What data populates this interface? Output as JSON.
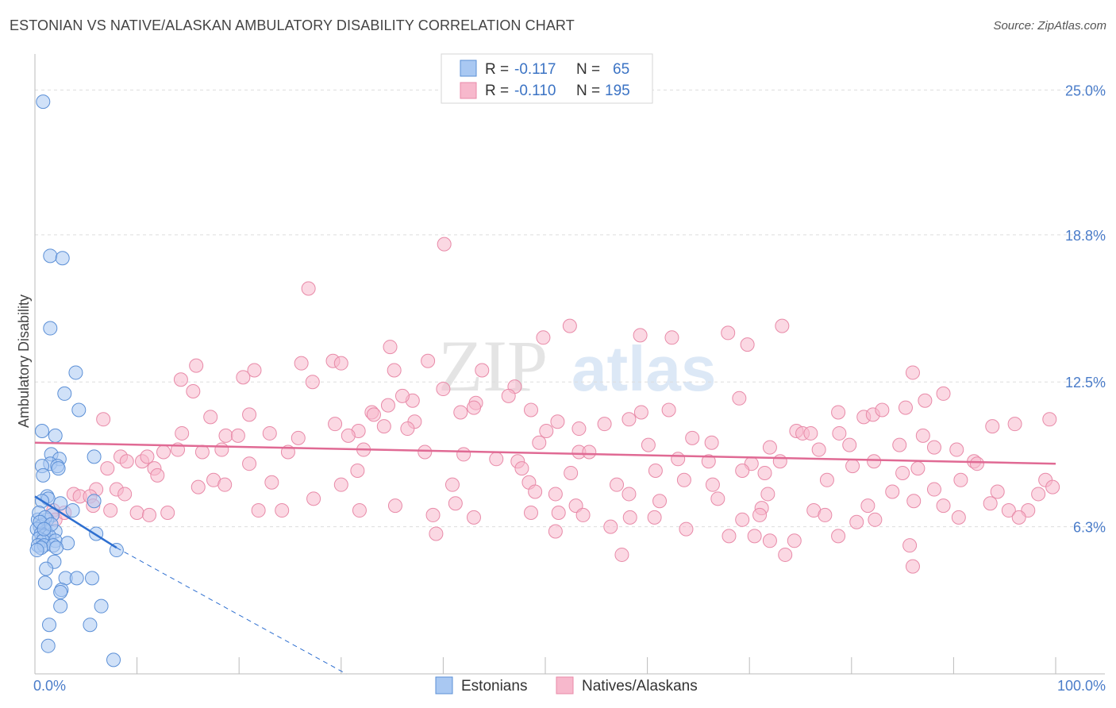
{
  "title": "ESTONIAN VS NATIVE/ALASKAN AMBULATORY DISABILITY CORRELATION CHART",
  "source": "Source: ZipAtlas.com",
  "watermark": {
    "zip": "ZIP",
    "atlas": "atlas"
  },
  "legend_top": {
    "rows": [
      {
        "r_label": "R =",
        "r_value": "-0.117",
        "n_label": "N =",
        "n_value": "65"
      },
      {
        "r_label": "R =",
        "r_value": "-0.110",
        "n_label": "N =",
        "n_value": "195"
      }
    ]
  },
  "colors": {
    "estonian_fill": "#a9c8f2",
    "estonian_stroke": "#5b8fd6",
    "estonian_line": "#2e6fd0",
    "native_fill": "#f7b8cc",
    "native_stroke": "#e88aa8",
    "native_line": "#e06a94",
    "axis_text": "#4a7cc9",
    "grid": "#dddddd"
  },
  "chart_data": {
    "type": "scatter",
    "title": "ESTONIAN VS NATIVE/ALASKAN AMBULATORY DISABILITY CORRELATION CHART",
    "xlabel": "",
    "ylabel": "Ambulatory Disability",
    "xlim": [
      0,
      100
    ],
    "ylim": [
      0,
      26
    ],
    "x_tick_labels": [
      "0.0%",
      "100.0%"
    ],
    "y_ticks": [
      6.3,
      12.5,
      18.8,
      25.0
    ],
    "y_tick_labels": [
      "6.3%",
      "12.5%",
      "18.8%",
      "25.0%"
    ],
    "grid": "horizontal dashed",
    "legend_position": "top-center",
    "series": [
      {
        "name": "Estonians",
        "r": -0.117,
        "n": 65,
        "trend": {
          "x": [
            0.0,
            8.0
          ],
          "y": [
            7.6,
            5.4
          ],
          "extended_to": [
            30.5,
            0.0
          ]
        },
        "points": [
          [
            0.8,
            24.5
          ],
          [
            1.5,
            17.9
          ],
          [
            2.7,
            17.8
          ],
          [
            1.5,
            14.8
          ],
          [
            4.0,
            12.9
          ],
          [
            2.9,
            12.0
          ],
          [
            4.3,
            11.3
          ],
          [
            0.7,
            10.4
          ],
          [
            2.0,
            10.2
          ],
          [
            1.6,
            9.4
          ],
          [
            2.4,
            9.2
          ],
          [
            5.8,
            9.3
          ],
          [
            1.5,
            9.0
          ],
          [
            2.2,
            8.9
          ],
          [
            0.7,
            8.9
          ],
          [
            2.3,
            8.8
          ],
          [
            0.8,
            8.5
          ],
          [
            1.2,
            7.6
          ],
          [
            1.3,
            7.5
          ],
          [
            0.7,
            7.4
          ],
          [
            2.5,
            7.3
          ],
          [
            5.8,
            7.4
          ],
          [
            3.7,
            7.0
          ],
          [
            1.7,
            6.8
          ],
          [
            1.2,
            6.6
          ],
          [
            0.3,
            6.6
          ],
          [
            0.8,
            6.4
          ],
          [
            0.5,
            6.3
          ],
          [
            0.2,
            6.2
          ],
          [
            1.1,
            6.1
          ],
          [
            2.0,
            6.1
          ],
          [
            0.6,
            6.0
          ],
          [
            0.9,
            5.9
          ],
          [
            1.4,
            5.9
          ],
          [
            6.0,
            6.0
          ],
          [
            0.4,
            5.8
          ],
          [
            0.8,
            5.7
          ],
          [
            2.0,
            5.7
          ],
          [
            3.2,
            5.6
          ],
          [
            0.3,
            5.5
          ],
          [
            0.9,
            5.5
          ],
          [
            1.8,
            5.5
          ],
          [
            0.6,
            5.4
          ],
          [
            2.1,
            5.4
          ],
          [
            0.2,
            5.3
          ],
          [
            8.0,
            5.3
          ],
          [
            1.9,
            4.8
          ],
          [
            1.1,
            4.5
          ],
          [
            3.0,
            4.1
          ],
          [
            4.1,
            4.1
          ],
          [
            5.6,
            4.1
          ],
          [
            1.0,
            3.9
          ],
          [
            2.6,
            3.6
          ],
          [
            2.5,
            3.5
          ],
          [
            2.5,
            2.9
          ],
          [
            6.5,
            2.9
          ],
          [
            1.4,
            2.1
          ],
          [
            5.4,
            2.1
          ],
          [
            1.3,
            1.2
          ],
          [
            7.7,
            0.6
          ],
          [
            0.4,
            6.9
          ],
          [
            1.0,
            6.7
          ],
          [
            0.5,
            6.5
          ],
          [
            1.6,
            6.4
          ],
          [
            0.9,
            6.2
          ]
        ]
      },
      {
        "name": "Natives/Alaskans",
        "r": -0.11,
        "n": 195,
        "trend": {
          "x": [
            0.0,
            100.0
          ],
          "y": [
            9.9,
            9.0
          ]
        },
        "points": [
          [
            40.1,
            18.4
          ],
          [
            26.8,
            16.5
          ],
          [
            52.4,
            14.9
          ],
          [
            73.2,
            14.9
          ],
          [
            49.8,
            14.4
          ],
          [
            59.3,
            14.5
          ],
          [
            62.4,
            14.4
          ],
          [
            67.9,
            14.6
          ],
          [
            34.8,
            14.0
          ],
          [
            69.8,
            14.1
          ],
          [
            38.5,
            13.4
          ],
          [
            15.8,
            13.2
          ],
          [
            26.1,
            13.3
          ],
          [
            29.2,
            13.4
          ],
          [
            30.0,
            13.3
          ],
          [
            21.5,
            13.0
          ],
          [
            35.2,
            13.0
          ],
          [
            43.8,
            13.0
          ],
          [
            86.0,
            12.9
          ],
          [
            14.3,
            12.6
          ],
          [
            27.2,
            12.5
          ],
          [
            20.4,
            12.7
          ],
          [
            40.0,
            12.2
          ],
          [
            47.0,
            12.3
          ],
          [
            15.5,
            12.1
          ],
          [
            37.0,
            11.7
          ],
          [
            43.2,
            11.6
          ],
          [
            46.4,
            11.9
          ],
          [
            69.0,
            11.8
          ],
          [
            89.0,
            12.0
          ],
          [
            34.6,
            11.5
          ],
          [
            36.0,
            11.9
          ],
          [
            43.0,
            11.4
          ],
          [
            59.4,
            11.2
          ],
          [
            48.6,
            11.3
          ],
          [
            33.0,
            11.2
          ],
          [
            41.7,
            11.2
          ],
          [
            62.1,
            11.3
          ],
          [
            78.7,
            11.2
          ],
          [
            81.2,
            11.0
          ],
          [
            82.1,
            11.1
          ],
          [
            85.3,
            11.4
          ],
          [
            87.2,
            11.7
          ],
          [
            83.0,
            11.3
          ],
          [
            6.7,
            10.9
          ],
          [
            17.2,
            11.0
          ],
          [
            21.0,
            11.1
          ],
          [
            33.2,
            11.1
          ],
          [
            37.2,
            10.8
          ],
          [
            51.2,
            10.8
          ],
          [
            29.4,
            10.7
          ],
          [
            31.7,
            10.4
          ],
          [
            36.5,
            10.5
          ],
          [
            34.2,
            10.6
          ],
          [
            50.1,
            10.4
          ],
          [
            53.3,
            10.5
          ],
          [
            55.8,
            10.7
          ],
          [
            58.2,
            10.9
          ],
          [
            74.6,
            10.4
          ],
          [
            75.2,
            10.3
          ],
          [
            76.0,
            10.3
          ],
          [
            78.8,
            10.3
          ],
          [
            87.0,
            10.2
          ],
          [
            93.8,
            10.6
          ],
          [
            99.4,
            10.9
          ],
          [
            96.0,
            10.7
          ],
          [
            14.4,
            10.3
          ],
          [
            18.7,
            10.2
          ],
          [
            19.9,
            10.2
          ],
          [
            23.0,
            10.3
          ],
          [
            25.8,
            10.1
          ],
          [
            30.7,
            10.2
          ],
          [
            49.4,
            9.9
          ],
          [
            60.1,
            9.8
          ],
          [
            64.4,
            10.1
          ],
          [
            66.3,
            9.9
          ],
          [
            72.0,
            9.7
          ],
          [
            79.8,
            9.8
          ],
          [
            84.7,
            9.8
          ],
          [
            90.3,
            9.6
          ],
          [
            88.1,
            9.7
          ],
          [
            76.8,
            9.6
          ],
          [
            8.4,
            9.3
          ],
          [
            9.0,
            9.1
          ],
          [
            10.5,
            9.1
          ],
          [
            11.0,
            9.3
          ],
          [
            12.6,
            9.5
          ],
          [
            14.0,
            9.6
          ],
          [
            16.4,
            9.5
          ],
          [
            18.3,
            9.6
          ],
          [
            24.8,
            9.5
          ],
          [
            32.2,
            9.6
          ],
          [
            38.2,
            9.5
          ],
          [
            42.0,
            9.4
          ],
          [
            45.2,
            9.2
          ],
          [
            47.3,
            9.1
          ],
          [
            53.3,
            9.5
          ],
          [
            54.3,
            9.5
          ],
          [
            63.0,
            9.2
          ],
          [
            66.0,
            9.1
          ],
          [
            70.2,
            9.0
          ],
          [
            73.0,
            9.1
          ],
          [
            82.2,
            9.1
          ],
          [
            92.0,
            9.1
          ],
          [
            80.1,
            8.9
          ],
          [
            7.1,
            8.8
          ],
          [
            11.7,
            8.8
          ],
          [
            21.0,
            9.0
          ],
          [
            31.6,
            8.7
          ],
          [
            47.7,
            8.8
          ],
          [
            52.5,
            8.6
          ],
          [
            60.8,
            8.7
          ],
          [
            63.6,
            8.3
          ],
          [
            69.3,
            8.7
          ],
          [
            71.5,
            8.6
          ],
          [
            77.6,
            8.3
          ],
          [
            86.5,
            8.8
          ],
          [
            92.3,
            9.0
          ],
          [
            99.0,
            8.3
          ],
          [
            85.0,
            8.6
          ],
          [
            6.0,
            7.9
          ],
          [
            8.0,
            7.9
          ],
          [
            12.0,
            8.5
          ],
          [
            16.0,
            8.0
          ],
          [
            17.5,
            8.3
          ],
          [
            23.2,
            8.2
          ],
          [
            30.0,
            8.1
          ],
          [
            40.9,
            8.1
          ],
          [
            48.4,
            8.2
          ],
          [
            57.0,
            8.1
          ],
          [
            66.4,
            8.1
          ],
          [
            71.8,
            7.7
          ],
          [
            84.0,
            7.8
          ],
          [
            88.1,
            7.9
          ],
          [
            90.7,
            8.3
          ],
          [
            94.3,
            7.8
          ],
          [
            98.3,
            7.7
          ],
          [
            99.7,
            8.0
          ],
          [
            3.8,
            7.7
          ],
          [
            4.4,
            7.6
          ],
          [
            5.4,
            7.6
          ],
          [
            8.8,
            7.7
          ],
          [
            18.6,
            8.1
          ],
          [
            27.3,
            7.5
          ],
          [
            35.3,
            7.2
          ],
          [
            41.2,
            7.3
          ],
          [
            49.0,
            7.8
          ],
          [
            51.0,
            7.7
          ],
          [
            53.0,
            7.2
          ],
          [
            58.2,
            7.7
          ],
          [
            61.2,
            7.4
          ],
          [
            66.9,
            7.5
          ],
          [
            71.2,
            7.1
          ],
          [
            76.3,
            7.0
          ],
          [
            81.6,
            7.2
          ],
          [
            86.1,
            7.4
          ],
          [
            89.0,
            7.2
          ],
          [
            93.6,
            7.3
          ],
          [
            95.4,
            7.0
          ],
          [
            97.3,
            7.0
          ],
          [
            5.7,
            7.2
          ],
          [
            7.4,
            7.0
          ],
          [
            10.0,
            6.9
          ],
          [
            11.2,
            6.8
          ],
          [
            13.0,
            6.9
          ],
          [
            21.9,
            7.0
          ],
          [
            24.2,
            7.0
          ],
          [
            31.8,
            7.0
          ],
          [
            39.0,
            6.8
          ],
          [
            43.0,
            6.7
          ],
          [
            48.6,
            6.9
          ],
          [
            51.3,
            6.9
          ],
          [
            53.7,
            6.8
          ],
          [
            58.3,
            6.7
          ],
          [
            60.7,
            6.7
          ],
          [
            69.3,
            6.6
          ],
          [
            71.0,
            6.8
          ],
          [
            77.4,
            6.8
          ],
          [
            80.5,
            6.5
          ],
          [
            82.3,
            6.6
          ],
          [
            90.5,
            6.7
          ],
          [
            96.4,
            6.7
          ],
          [
            1.8,
            7.0
          ],
          [
            2.0,
            6.6
          ],
          [
            2.9,
            6.9
          ],
          [
            56.4,
            6.3
          ],
          [
            63.8,
            6.2
          ],
          [
            51.0,
            6.1
          ],
          [
            39.3,
            6.0
          ],
          [
            68.0,
            5.9
          ],
          [
            70.5,
            5.9
          ],
          [
            74.4,
            5.7
          ],
          [
            78.7,
            5.9
          ],
          [
            72.0,
            5.7
          ],
          [
            85.7,
            5.5
          ],
          [
            73.5,
            5.1
          ],
          [
            57.5,
            5.1
          ],
          [
            86.0,
            4.6
          ]
        ]
      }
    ]
  }
}
